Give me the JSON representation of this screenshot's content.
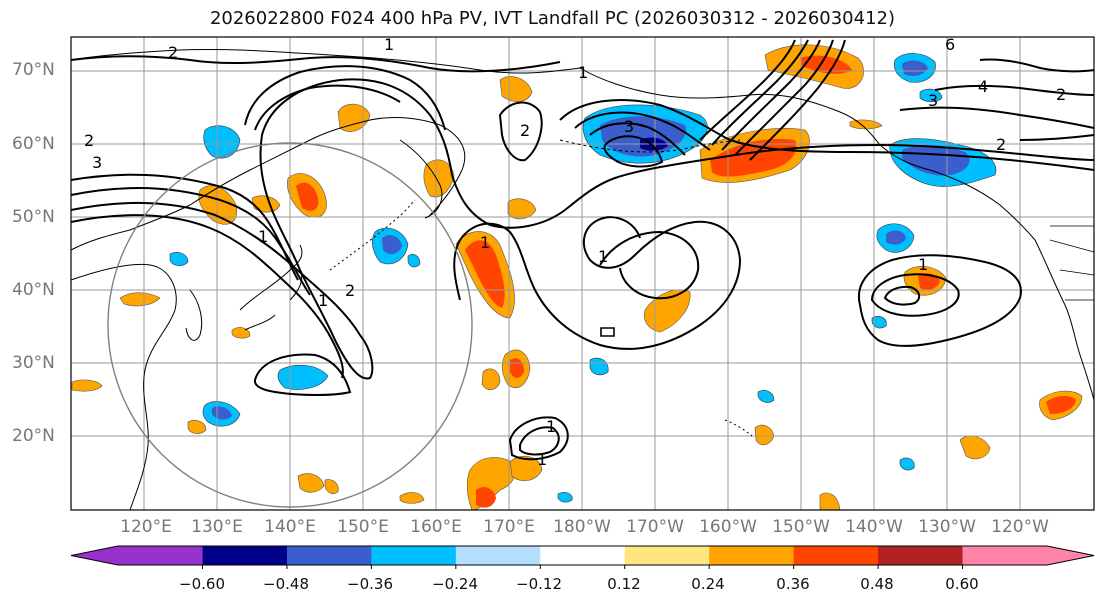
{
  "title": "2026022800 F024 400 hPa PV, IVT Landfall PC (2026030312 - 2026030412)",
  "lat_labels": [
    "70°N",
    "60°N",
    "50°N",
    "40°N",
    "30°N",
    "20°N"
  ],
  "lon_labels": [
    "120°E",
    "130°E",
    "140°E",
    "150°E",
    "160°E",
    "170°E",
    "180°W",
    "170°W",
    "160°W",
    "150°W",
    "140°W",
    "130°W",
    "120°W"
  ],
  "colorbar": {
    "colors": [
      "#9932cc",
      "#00008b",
      "#3a5fcd",
      "#00bfff",
      "#b3e0ff",
      "#ffffff",
      "#ffe680",
      "#ffa500",
      "#ff4500",
      "#b22222",
      "#ff85a8"
    ],
    "tick_labels": [
      "−0.60",
      "−0.48",
      "−0.36",
      "−0.24",
      "−0.12",
      "0.12",
      "0.24",
      "0.36",
      "0.48",
      "0.60"
    ]
  },
  "contour_labels": [
    "1",
    "2",
    "3",
    "4",
    "6",
    "1",
    "2",
    "3",
    "1",
    "2",
    "1",
    "1",
    "2",
    "1",
    "1",
    "2",
    "2",
    "3",
    "1",
    "1"
  ]
}
